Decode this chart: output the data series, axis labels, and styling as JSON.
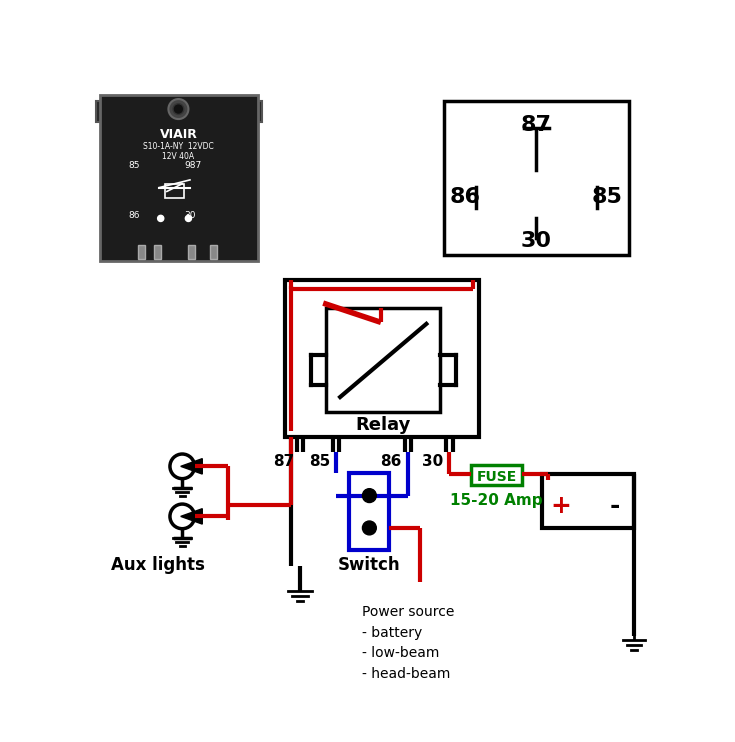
{
  "bg_color": "#ffffff",
  "relay_label": "Relay",
  "fuse_label": "FUSE",
  "fuse_amp_label": "15-20 Amp",
  "aux_lights_label": "Aux lights",
  "switch_label": "Switch",
  "power_source_label": "Power source\n- battery\n- low-beam\n- head-beam",
  "viair_line1": "VIAIR",
  "viair_line2": "S10-1A-NY  12VDC",
  "viair_line3": "12V 40A",
  "fuse_color": "#008000",
  "wire_red": "#cc0000",
  "wire_black": "#000000",
  "wire_blue": "#0000cc",
  "plus_color": "#cc0000",
  "text_color": "#000000"
}
